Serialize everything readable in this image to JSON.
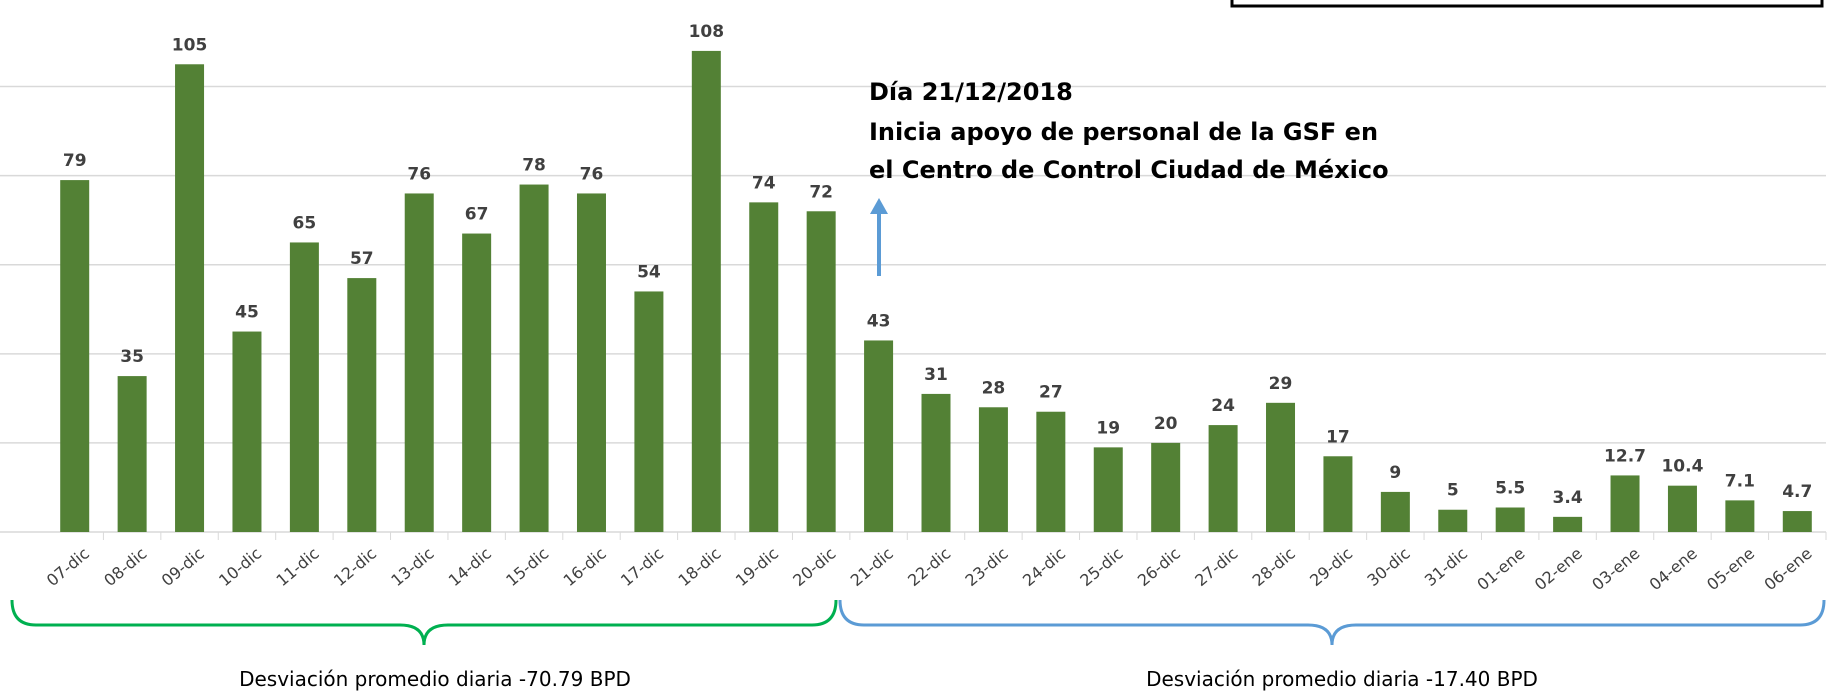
{
  "chart_data": {
    "type": "bar",
    "categories": [
      "07-dic",
      "08-dic",
      "09-dic",
      "10-dic",
      "11-dic",
      "12-dic",
      "13-dic",
      "14-dic",
      "15-dic",
      "16-dic",
      "17-dic",
      "18-dic",
      "19-dic",
      "20-dic",
      "21-dic",
      "22-dic",
      "23-dic",
      "24-dic",
      "25-dic",
      "26-dic",
      "27-dic",
      "28-dic",
      "29-dic",
      "30-dic",
      "31-dic",
      "01-ene",
      "02-ene",
      "03-ene",
      "04-ene",
      "05-ene",
      "06-ene"
    ],
    "values": [
      79,
      35,
      105,
      45,
      65,
      57,
      76,
      67,
      78,
      76,
      54,
      108,
      74,
      72,
      43,
      31,
      28,
      27,
      19,
      20,
      24,
      29,
      17,
      9,
      5,
      5.5,
      3.4,
      12.7,
      10.4,
      7.1,
      4.7
    ],
    "color": "#538135",
    "ylim": [
      0,
      110
    ],
    "yticks": [
      0,
      20,
      40,
      60,
      80,
      100
    ],
    "grid": true,
    "annotation": [
      "Día 21/12/2018",
      "Inicia apoyo de personal de la GSF en",
      "el Centro de Control Ciudad de México"
    ],
    "period_labels": [
      "Desviación promedio diaria   -70.79 BPD",
      "Desviación promedio diaria   -17.40 BPD"
    ]
  }
}
